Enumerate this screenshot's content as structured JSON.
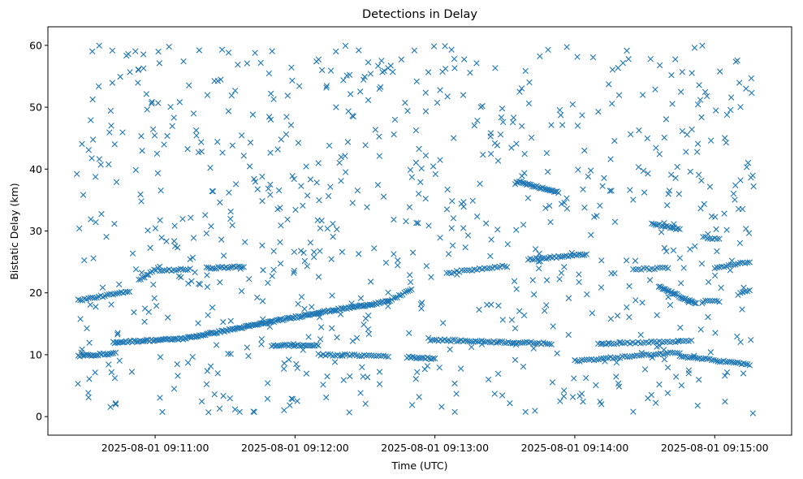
{
  "chart_data": {
    "type": "scatter",
    "title": "Detections in Delay",
    "xlabel": "Time (UTC)",
    "ylabel": "Bistatic Delay (km)",
    "x_axis_type": "datetime",
    "xlim": [
      "2025-08-01 09:10:14",
      "2025-08-01 09:15:33"
    ],
    "ylim": [
      -3,
      63
    ],
    "x_ticks": [
      "2025-08-01 09:11:00",
      "2025-08-01 09:12:00",
      "2025-08-01 09:13:00",
      "2025-08-01 09:14:00",
      "2025-08-01 09:15:00"
    ],
    "x_tick_labels": [
      "2025-08-01 09:11:00",
      "2025-08-01 09:12:00",
      "2025-08-01 09:13:00",
      "2025-08-01 09:14:00",
      "2025-08-01 09:15:00"
    ],
    "y_ticks": [
      0,
      10,
      20,
      30,
      40,
      50,
      60
    ],
    "y_tick_labels": [
      "0",
      "10",
      "20",
      "30",
      "40",
      "50",
      "60"
    ],
    "grid": false,
    "legend": "none",
    "marker": "x",
    "color": "#1f77b4",
    "series": [
      {
        "tracks": [
          {
            "from": [
              "2025-08-01 09:10:27",
              9.8
            ],
            "to": [
              "2025-08-01 09:10:42",
              10.2
            ],
            "points": 22
          },
          {
            "from": [
              "2025-08-01 09:10:27",
              18.8
            ],
            "to": [
              "2025-08-01 09:10:49",
              20.2
            ],
            "points": 26
          },
          {
            "from": [
              "2025-08-01 09:10:42",
              12.0
            ],
            "to": [
              "2025-08-01 09:11:12",
              12.6
            ],
            "points": 45
          },
          {
            "from": [
              "2025-08-01 09:11:12",
              12.6
            ],
            "to": [
              "2025-08-01 09:11:40",
              14.6
            ],
            "points": 45
          },
          {
            "from": [
              "2025-08-01 09:11:40",
              14.6
            ],
            "to": [
              "2025-08-01 09:12:10",
              16.8
            ],
            "points": 50
          },
          {
            "from": [
              "2025-08-01 09:12:10",
              16.8
            ],
            "to": [
              "2025-08-01 09:12:40",
              18.6
            ],
            "points": 50
          },
          {
            "from": [
              "2025-08-01 09:12:40",
              18.6
            ],
            "to": [
              "2025-08-01 09:12:50",
              20.6
            ],
            "points": 14
          },
          {
            "from": [
              "2025-08-01 09:10:53",
              22.0
            ],
            "to": [
              "2025-08-01 09:11:02",
              24.2
            ],
            "points": 12
          },
          {
            "from": [
              "2025-08-01 09:11:02",
              23.6
            ],
            "to": [
              "2025-08-01 09:11:15",
              23.8
            ],
            "points": 14
          },
          {
            "from": [
              "2025-08-01 09:11:22",
              24.0
            ],
            "to": [
              "2025-08-01 09:11:38",
              24.2
            ],
            "points": 20
          },
          {
            "from": [
              "2025-08-01 09:11:50",
              11.5
            ],
            "to": [
              "2025-08-01 09:12:10",
              11.5
            ],
            "points": 26
          },
          {
            "from": [
              "2025-08-01 09:12:10",
              10.0
            ],
            "to": [
              "2025-08-01 09:12:40",
              9.8
            ],
            "points": 30
          },
          {
            "from": [
              "2025-08-01 09:12:48",
              9.6
            ],
            "to": [
              "2025-08-01 09:13:00",
              9.4
            ],
            "points": 16
          },
          {
            "from": [
              "2025-08-01 09:12:58",
              12.4
            ],
            "to": [
              "2025-08-01 09:13:50",
              11.8
            ],
            "points": 60
          },
          {
            "from": [
              "2025-08-01 09:13:05",
              23.2
            ],
            "to": [
              "2025-08-01 09:13:30",
              24.4
            ],
            "points": 24
          },
          {
            "from": [
              "2025-08-01 09:13:40",
              25.4
            ],
            "to": [
              "2025-08-01 09:14:05",
              26.2
            ],
            "points": 30
          },
          {
            "from": [
              "2025-08-01 09:13:35",
              38.0
            ],
            "to": [
              "2025-08-01 09:13:53",
              36.2
            ],
            "points": 30
          },
          {
            "from": [
              "2025-08-01 09:14:00",
              9.0
            ],
            "to": [
              "2025-08-01 09:14:45",
              10.4
            ],
            "points": 45
          },
          {
            "from": [
              "2025-08-01 09:14:10",
              11.8
            ],
            "to": [
              "2025-08-01 09:14:50",
              12.2
            ],
            "points": 36
          },
          {
            "from": [
              "2025-08-01 09:14:25",
              23.8
            ],
            "to": [
              "2025-08-01 09:14:40",
              24.0
            ],
            "points": 14
          },
          {
            "from": [
              "2025-08-01 09:14:33",
              31.2
            ],
            "to": [
              "2025-08-01 09:14:45",
              30.2
            ],
            "points": 16
          },
          {
            "from": [
              "2025-08-01 09:14:36",
              21.0
            ],
            "to": [
              "2025-08-01 09:14:52",
              18.2
            ],
            "points": 30
          },
          {
            "from": [
              "2025-08-01 09:14:45",
              9.8
            ],
            "to": [
              "2025-08-01 09:15:15",
              8.4
            ],
            "points": 36
          },
          {
            "from": [
              "2025-08-01 09:14:55",
              29.0
            ],
            "to": [
              "2025-08-01 09:15:02",
              28.6
            ],
            "points": 8
          },
          {
            "from": [
              "2025-08-01 09:15:00",
              24.0
            ],
            "to": [
              "2025-08-01 09:15:15",
              25.0
            ],
            "points": 16
          },
          {
            "from": [
              "2025-08-01 09:15:10",
              19.8
            ],
            "to": [
              "2025-08-01 09:15:15",
              20.4
            ],
            "points": 6
          },
          {
            "from": [
              "2025-08-01 09:14:55",
              18.6
            ],
            "to": [
              "2025-08-01 09:15:02",
              18.6
            ],
            "points": 8
          }
        ],
        "scattered": {
          "x_range": [
            "2025-08-01 09:10:26",
            "2025-08-01 09:15:17"
          ],
          "y_range": [
            0.5,
            60
          ],
          "approx_count": 800
        }
      }
    ]
  }
}
